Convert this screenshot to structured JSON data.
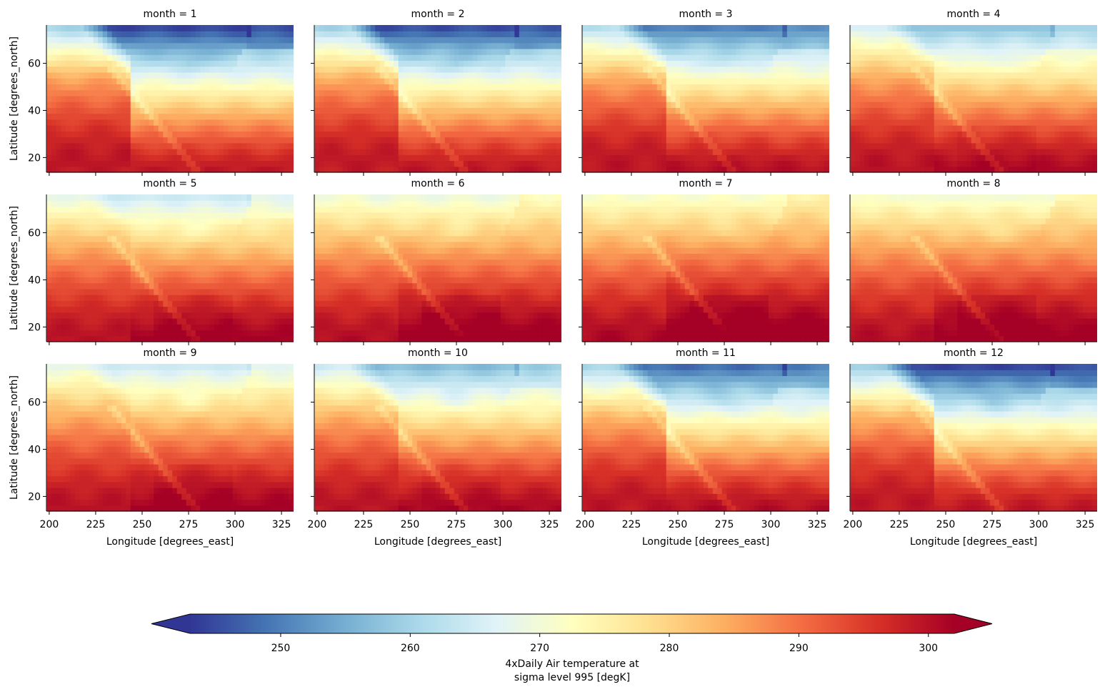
{
  "chart_data": {
    "type": "heatmap",
    "layout": "facet grid, 3 rows x 4 columns",
    "facet_titles": [
      "month = 1",
      "month = 2",
      "month = 3",
      "month = 4",
      "month = 5",
      "month = 6",
      "month = 7",
      "month = 8",
      "month = 9",
      "month = 10",
      "month = 11",
      "month = 12"
    ],
    "xlabel": "Longitude [degrees_east]",
    "ylabel": "Latitude [degrees_north]",
    "xlim": [
      198.5,
      331.5
    ],
    "ylim": [
      13.75,
      76.25
    ],
    "x_ticks": [
      200,
      225,
      250,
      275,
      300,
      325
    ],
    "y_ticks": [
      20,
      40,
      60
    ],
    "colormap": "RdYlBu_r",
    "colormap_stops": [
      "#313695",
      "#4575b4",
      "#74add1",
      "#abd9e9",
      "#e0f3f8",
      "#ffffbf",
      "#fee090",
      "#fdae61",
      "#f46d43",
      "#d73027",
      "#a50026"
    ],
    "colorbar": {
      "label_line1": "4xDaily Air temperature at",
      "label_line2": "sigma level 995 [degK]",
      "ticks": [
        250,
        260,
        270,
        280,
        290,
        300
      ],
      "vmin": 243,
      "vmax": 302,
      "extend": "both",
      "orientation": "horizontal",
      "location": "bottom"
    },
    "grid_resolution": {
      "lon_step": 2.5,
      "lat_step": 2.5,
      "lon_count": 53,
      "lat_count": 25
    },
    "approx_features": {
      "monthly_cold_minimum_degK": [
        242,
        243,
        248,
        256,
        263,
        268,
        270,
        269,
        263,
        255,
        246,
        242
      ],
      "monthly_south_maximum_degK": [
        299,
        299,
        300,
        301,
        302,
        303,
        304,
        303,
        302,
        301,
        300,
        299
      ]
    }
  }
}
